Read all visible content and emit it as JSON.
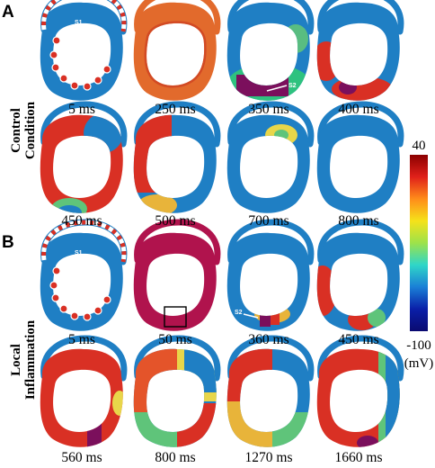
{
  "panels": [
    {
      "letter": "A",
      "condition_lines": [
        "Control",
        "Condition"
      ],
      "frames": [
        {
          "time": "5 ms",
          "state": "stim"
        },
        {
          "time": "250 ms",
          "state": "orange"
        },
        {
          "time": "350 ms",
          "state": "s2-bottom"
        },
        {
          "time": "400 ms",
          "state": "bottom-red"
        },
        {
          "time": "450 ms",
          "state": "mostly-red"
        },
        {
          "time": "500 ms",
          "state": "red-left"
        },
        {
          "time": "700 ms",
          "state": "blue-spot"
        },
        {
          "time": "800 ms",
          "state": "blue"
        }
      ],
      "stim_labels": [
        "S1",
        "S2"
      ]
    },
    {
      "letter": "B",
      "condition_lines": [
        "Local",
        "Inflammation"
      ],
      "frames": [
        {
          "time": "5 ms",
          "state": "stim"
        },
        {
          "time": "50 ms",
          "state": "crimson-box"
        },
        {
          "time": "360 ms",
          "state": "s2-small"
        },
        {
          "time": "450 ms",
          "state": "left-red"
        },
        {
          "time": "560 ms",
          "state": "mostly-red-purple"
        },
        {
          "time": "800 ms",
          "state": "mixed"
        },
        {
          "time": "1270 ms",
          "state": "mixed-blue"
        },
        {
          "time": "1660 ms",
          "state": "mostly-red-right"
        }
      ],
      "stim_labels": [
        "S1",
        "S2"
      ]
    }
  ],
  "colorbar": {
    "max_label": "40",
    "min_label": "-100",
    "unit": "(mV)",
    "colors": [
      "#8b0000",
      "#e0201a",
      "#ff8c1a",
      "#f5e21a",
      "#9de24a",
      "#2fd6c8",
      "#1a7fd6",
      "#0a1fa8",
      "#0a0a70"
    ]
  },
  "tissue_colors": {
    "rest": "#1f7fc4",
    "red": "#d93024",
    "orange": "#e0622a",
    "crimson": "#b0134d",
    "purple": "#7b0f5c",
    "yellow": "#e8d64a",
    "green": "#5fc47a"
  }
}
